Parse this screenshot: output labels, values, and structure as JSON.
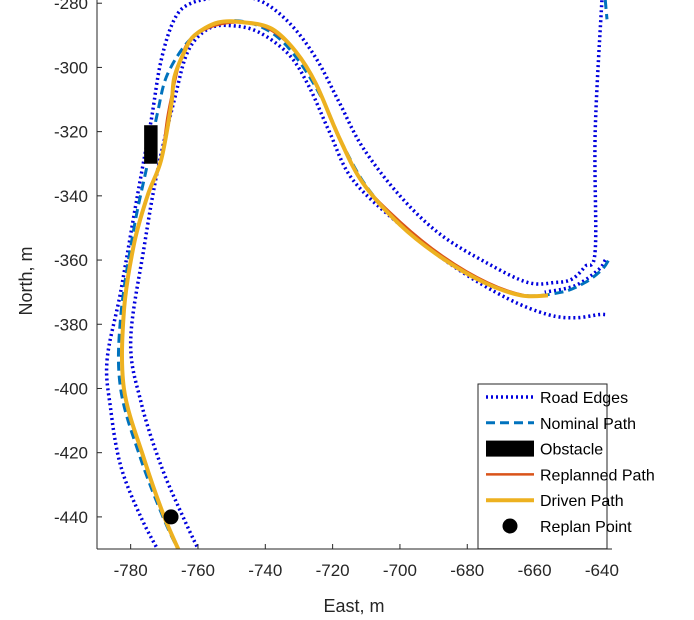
{
  "chart_data": {
    "type": "line",
    "xlabel": "East, m",
    "ylabel": "North, m",
    "xlim": [
      -790,
      -637
    ],
    "ylim": [
      -450,
      -279
    ],
    "xticks": [
      -780,
      -760,
      -740,
      -720,
      -700,
      -680,
      -660,
      -640
    ],
    "yticks": [
      -280,
      -300,
      -320,
      -340,
      -360,
      -380,
      -400,
      -420,
      -440
    ],
    "grid": false,
    "legend_position": "bottom-right",
    "series": [
      {
        "name": "Road Edges",
        "style": "dotted",
        "color": "#0000dd",
        "segments": [
          {
            "x": [
              -771,
              -777,
              -783,
              -786,
              -787,
              -783,
              -778,
              -774,
              -771,
              -767,
              -762,
              -752,
              -742,
              -733,
              -725,
              -718,
              -711,
              -700,
              -688,
              -674,
              -662,
              -654,
              -649,
              -645,
              -642,
              -642,
              -640
            ],
            "y": [
              -452,
              -440,
              -424,
              -406,
              -391,
              -370,
              -340,
              -317,
              -298,
              -285,
              -280,
              -278,
              -279,
              -286,
              -297,
              -311,
              -325,
              -340,
              -352,
              -361,
              -367,
              -367,
              -366,
              -362,
              -357,
              -320,
              -279
            ]
          },
          {
            "x": [
              -759,
              -764,
              -771,
              -777,
              -780,
              -776,
              -772,
              -767,
              -763,
              -757,
              -750,
              -742,
              -733,
              -727,
              -721,
              -714,
              -700,
              -684,
              -668,
              -656,
              -648,
              -641,
              -639
            ],
            "y": [
              -452,
              -441,
              -424,
              -404,
              -385,
              -356,
              -332,
              -310,
              -295,
              -288,
              -287,
              -289,
              -296,
              -306,
              -320,
              -335,
              -349,
              -362,
              -372,
              -377,
              -378,
              -377,
              -377
            ]
          },
          {
            "x": [
              -639,
              -641,
              -648,
              -657
            ],
            "y": [
              -360,
              -363,
              -368,
              -370
            ]
          }
        ]
      },
      {
        "name": "Nominal Path",
        "style": "dashed",
        "color": "#0072bd",
        "segments": [
          {
            "x": [
              -765,
              -770,
              -777,
              -783,
              -783,
              -779,
              -775,
              -772,
              -769,
              -762,
              -753,
              -745,
              -737,
              -730,
              -723,
              -717,
              -710,
              -700,
              -688,
              -675,
              -663,
              -652,
              -645,
              -640,
              -638
            ],
            "y": [
              -452,
              -441,
              -422,
              -400,
              -378,
              -350,
              -330,
              -314,
              -302,
              -291,
              -286,
              -286,
              -290,
              -298,
              -310,
              -324,
              -337,
              -349,
              -359,
              -367,
              -371,
              -370,
              -367,
              -363,
              -360
            ]
          },
          {
            "x": [
              -639,
              -638.5
            ],
            "y": [
              -279,
              -285
            ]
          }
        ]
      },
      {
        "name": "Obstacle",
        "style": "patch",
        "color": "#000000",
        "x": [
          -776,
          -772
        ],
        "y": [
          -330,
          -318
        ]
      },
      {
        "name": "Replanned Path",
        "style": "solid",
        "color": "#d95319",
        "segments": [
          {
            "x": [
              -765,
              -770,
              -776,
              -782,
              -782,
              -779,
              -775,
              -771,
              -769,
              -767,
              -765,
              -762,
              -755,
              -747,
              -739,
              -731,
              -725,
              -718,
              -711,
              -700,
              -687,
              -674,
              -663,
              -656
            ],
            "y": [
              -452,
              -440,
              -422,
              -400,
              -376,
              -355,
              -340,
              -329,
              -315,
              -305,
              -297,
              -291,
              -287,
              -286,
              -288,
              -295,
              -305,
              -322,
              -336,
              -348,
              -359,
              -367,
              -371,
              -371
            ]
          }
        ]
      },
      {
        "name": "Driven Path",
        "style": "solid",
        "color": "#edb120",
        "segments": [
          {
            "x": [
              -765,
              -770,
              -776,
              -782,
              -782,
              -779,
              -775,
              -771,
              -768,
              -767,
              -764,
              -761,
              -754,
              -746,
              -738,
              -731,
              -725,
              -718,
              -711,
              -700,
              -688,
              -675,
              -664,
              -656
            ],
            "y": [
              -452,
              -440,
              -422,
              -400,
              -376,
              -355,
              -340,
              -329,
              -312,
              -303,
              -295,
              -290,
              -286,
              -286,
              -288,
              -295,
              -305,
              -322,
              -336,
              -349,
              -359,
              -367,
              -371,
              -371
            ]
          }
        ]
      },
      {
        "name": "Replan Point",
        "style": "marker",
        "color": "#000000",
        "x": [
          -768
        ],
        "y": [
          -440
        ]
      }
    ]
  }
}
